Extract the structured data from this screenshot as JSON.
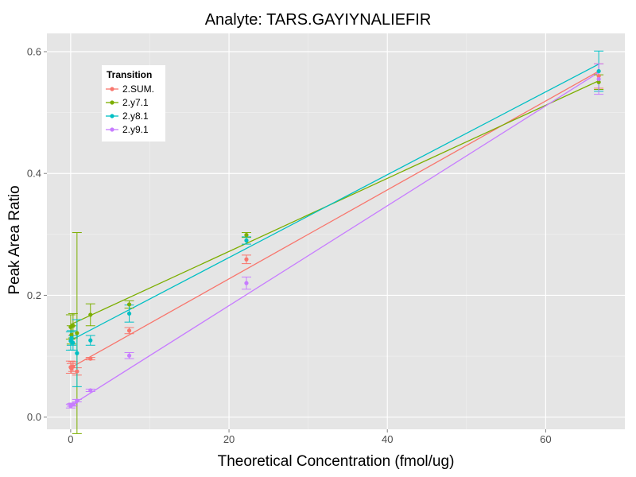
{
  "chart_data": {
    "type": "scatter",
    "title": "Analyte: TARS.GAYIYNALIEFIR",
    "xlabel": "Theoretical Concentration (fmol/ug)",
    "ylabel": "Peak Area Ratio",
    "xlim": [
      -3,
      70
    ],
    "ylim": [
      -0.02,
      0.63
    ],
    "x_ticks": [
      0,
      20,
      40,
      60
    ],
    "y_ticks": [
      0.0,
      0.2,
      0.4,
      0.6
    ],
    "x_tick_labels": [
      "0",
      "20",
      "40",
      "60"
    ],
    "y_tick_labels": [
      "0.0",
      "0.2",
      "0.4",
      "0.6"
    ],
    "grid": true,
    "legend": {
      "title": "Transition",
      "position": "top-left"
    },
    "series": [
      {
        "name": "2.SUM.",
        "color": "#F8766D",
        "fit": {
          "intercept": 0.081,
          "slope": 0.0073
        },
        "points": [
          {
            "x": 0,
            "y": 0.082,
            "err": 0.01
          },
          {
            "x": 0.1,
            "y": 0.08,
            "err": 0.008
          },
          {
            "x": 0.3,
            "y": 0.083,
            "err": 0.008
          },
          {
            "x": 0.8,
            "y": 0.075,
            "err": 0.006
          },
          {
            "x": 2.5,
            "y": 0.096,
            "err": 0.002
          },
          {
            "x": 7.4,
            "y": 0.142,
            "err": 0.005
          },
          {
            "x": 22.2,
            "y": 0.259,
            "err": 0.007
          },
          {
            "x": 66.7,
            "y": 0.56,
            "err": 0.02
          }
        ]
      },
      {
        "name": "2.y7.1",
        "color": "#7CAE00",
        "fit": {
          "intercept": 0.152,
          "slope": 0.006
        },
        "points": [
          {
            "x": 0,
            "y": 0.148,
            "err": 0.02
          },
          {
            "x": 0.1,
            "y": 0.135,
            "err": 0.015
          },
          {
            "x": 0.3,
            "y": 0.15,
            "err": 0.02
          },
          {
            "x": 0.8,
            "y": 0.138,
            "err": 0.165
          },
          {
            "x": 2.5,
            "y": 0.168,
            "err": 0.018
          },
          {
            "x": 7.4,
            "y": 0.185,
            "err": 0.006
          },
          {
            "x": 22.2,
            "y": 0.299,
            "err": 0.004
          },
          {
            "x": 66.7,
            "y": 0.55,
            "err": 0.012
          }
        ]
      },
      {
        "name": "2.y8.1",
        "color": "#00BFC4",
        "fit": {
          "intercept": 0.126,
          "slope": 0.0068
        },
        "points": [
          {
            "x": 0,
            "y": 0.125,
            "err": 0.015
          },
          {
            "x": 0.1,
            "y": 0.13,
            "err": 0.012
          },
          {
            "x": 0.3,
            "y": 0.122,
            "err": 0.012
          },
          {
            "x": 0.8,
            "y": 0.105,
            "err": 0.055
          },
          {
            "x": 2.5,
            "y": 0.126,
            "err": 0.008
          },
          {
            "x": 7.4,
            "y": 0.17,
            "err": 0.014
          },
          {
            "x": 22.2,
            "y": 0.29,
            "err": 0.006
          },
          {
            "x": 66.7,
            "y": 0.568,
            "err": 0.033
          }
        ]
      },
      {
        "name": "2.y9.1",
        "color": "#C77CFF",
        "fit": {
          "intercept": 0.019,
          "slope": 0.0082
        },
        "points": [
          {
            "x": 0,
            "y": 0.018,
            "err": 0.003
          },
          {
            "x": 0.1,
            "y": 0.02,
            "err": 0.002
          },
          {
            "x": 0.3,
            "y": 0.021,
            "err": 0.002
          },
          {
            "x": 0.8,
            "y": 0.027,
            "err": 0.002
          },
          {
            "x": 2.5,
            "y": 0.044,
            "err": 0.002
          },
          {
            "x": 7.4,
            "y": 0.101,
            "err": 0.005
          },
          {
            "x": 22.2,
            "y": 0.22,
            "err": 0.01
          },
          {
            "x": 66.7,
            "y": 0.555,
            "err": 0.025
          }
        ]
      }
    ]
  }
}
